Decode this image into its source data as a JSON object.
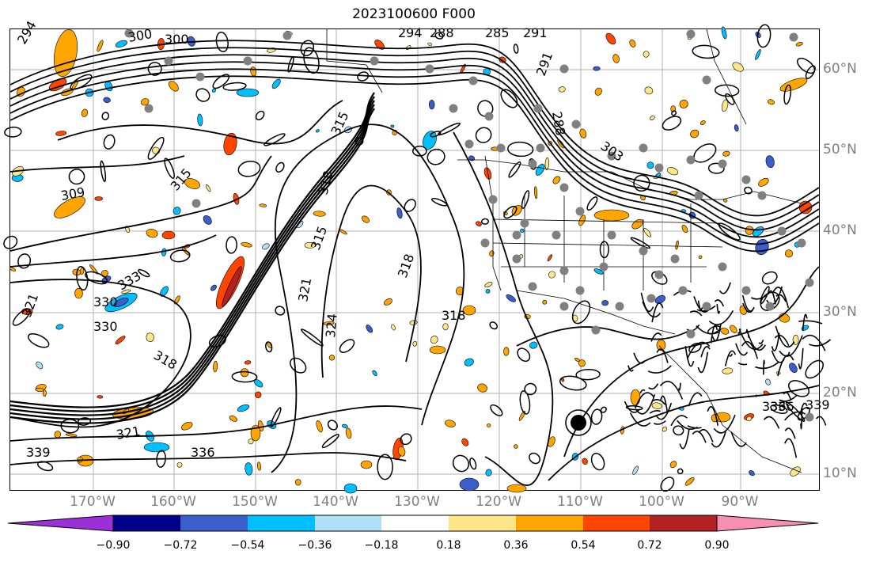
{
  "title": "2023100600 F000",
  "longitude_labels": [
    "170°W",
    "160°W",
    "150°W",
    "140°W",
    "130°W",
    "120°W",
    "110°W",
    "100°W",
    "90°W"
  ],
  "latitude_labels": [
    "60°N",
    "50°N",
    "40°N",
    "30°N",
    "20°N",
    "10°N"
  ],
  "colorbar": {
    "tick_labels": [
      "−0.90",
      "−0.72",
      "−0.54",
      "−0.36",
      "−0.18",
      "0.18",
      "0.36",
      "0.54",
      "0.72",
      "0.90"
    ],
    "colors": [
      "#9b30d9",
      "#00008b",
      "#3a5fcd",
      "#00bfff",
      "#b0e0f6",
      "#ffffff",
      "#fde68a",
      "#ffa500",
      "#ff4500",
      "#b22222",
      "#f78fb3"
    ]
  },
  "contour_labels": [
    "294",
    "300",
    "300",
    "294",
    "288",
    "285",
    "291",
    "291",
    "288",
    "303",
    "309",
    "315",
    "315",
    "318",
    "321",
    "324",
    "318",
    "318",
    "315",
    "330",
    "321",
    "336",
    "333",
    "336",
    "330",
    "339",
    "318",
    "321",
    "336",
    "339"
  ],
  "colors": {
    "label_gray": "#808080",
    "contour": "#000000",
    "station_dot": "#808080"
  }
}
